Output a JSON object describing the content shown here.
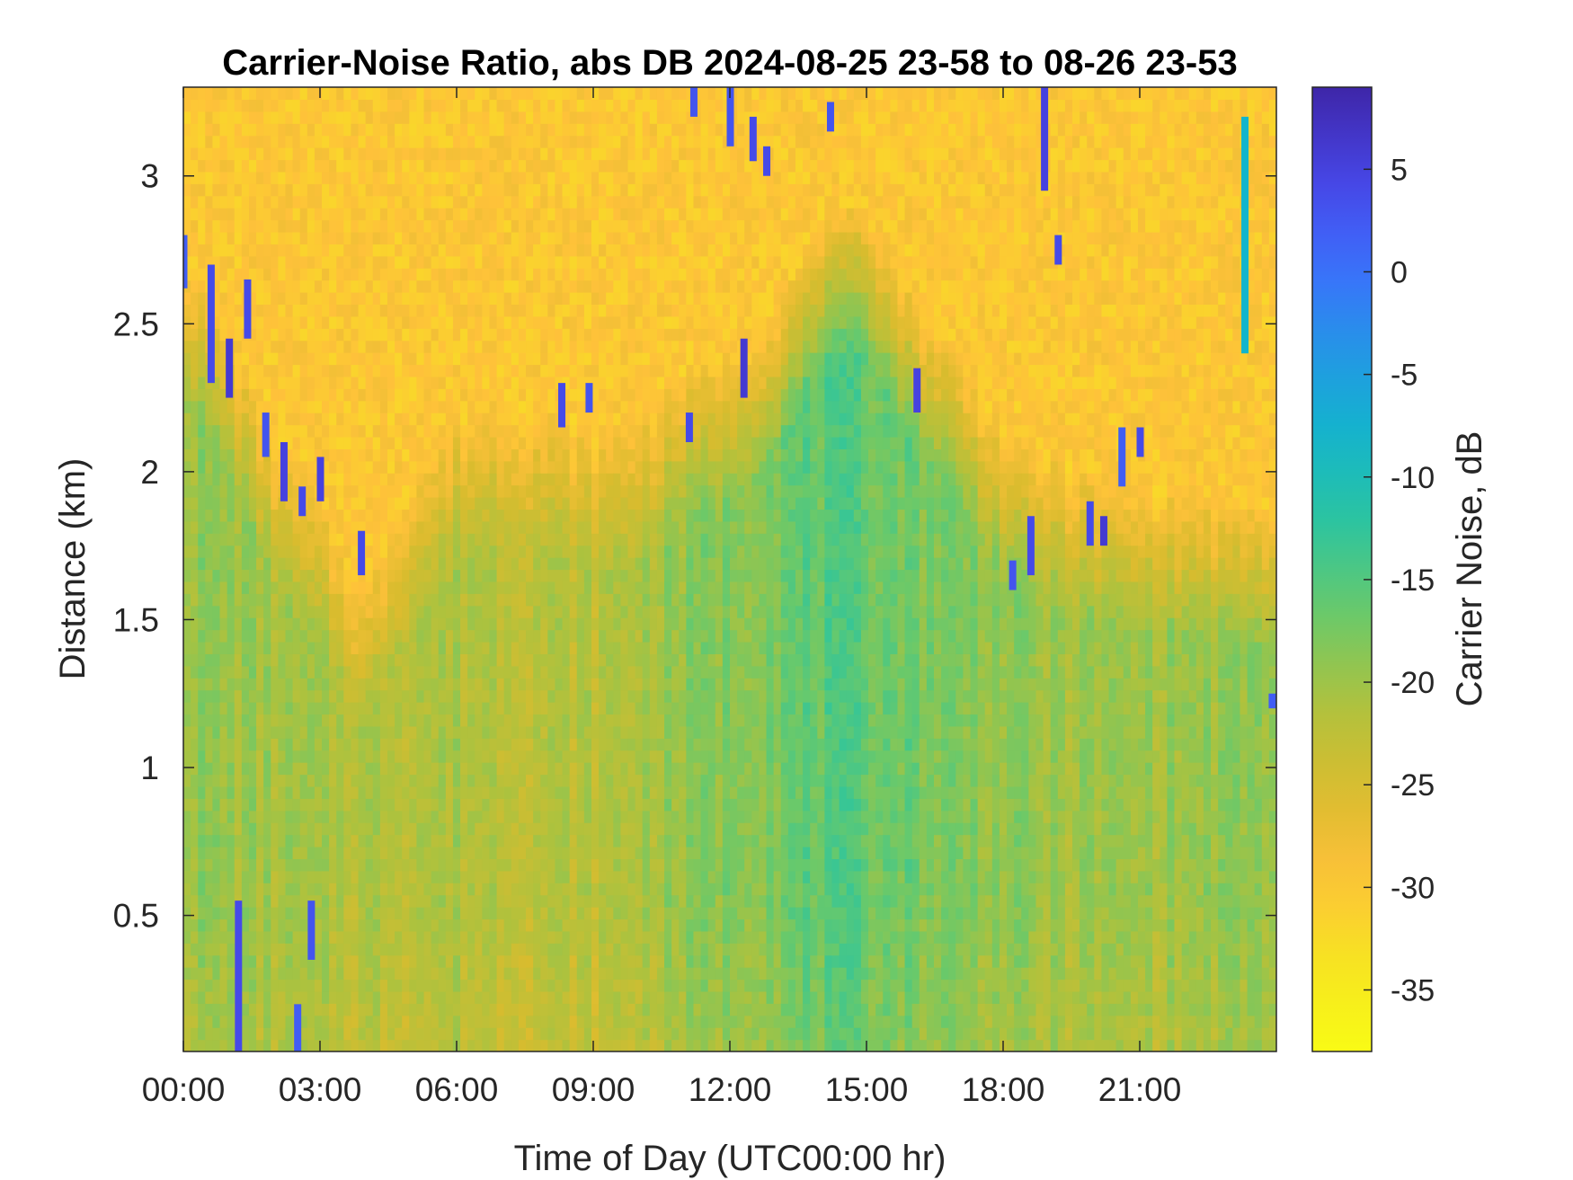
{
  "chart_data": {
    "type": "heatmap",
    "title": "Carrier-Noise Ratio, abs DB 2024-08-25 23-58 to 08-26 23-53",
    "xlabel": "Time of Day (UTC00:00 hr)",
    "ylabel": "Distance (km)",
    "colorbar_label": "Carrier Noise, dB",
    "xlim": [
      0,
      24
    ],
    "ylim": [
      0.04,
      3.3
    ],
    "clim": [
      -38,
      9
    ],
    "x_ticks": [
      {
        "value": 0,
        "label": "00:00"
      },
      {
        "value": 3,
        "label": "03:00"
      },
      {
        "value": 6,
        "label": "06:00"
      },
      {
        "value": 9,
        "label": "09:00"
      },
      {
        "value": 12,
        "label": "12:00"
      },
      {
        "value": 15,
        "label": "15:00"
      },
      {
        "value": 18,
        "label": "18:00"
      },
      {
        "value": 21,
        "label": "21:00"
      }
    ],
    "y_ticks": [
      {
        "value": 0.5,
        "label": "0.5"
      },
      {
        "value": 1,
        "label": "1"
      },
      {
        "value": 1.5,
        "label": "1.5"
      },
      {
        "value": 2,
        "label": "2"
      },
      {
        "value": 2.5,
        "label": "2.5"
      },
      {
        "value": 3,
        "label": "3"
      }
    ],
    "colorbar_ticks": [
      {
        "value": 5,
        "label": "5"
      },
      {
        "value": 0,
        "label": "0"
      },
      {
        "value": -5,
        "label": "-5"
      },
      {
        "value": -10,
        "label": "-10"
      },
      {
        "value": -15,
        "label": "-15"
      },
      {
        "value": -20,
        "label": "-20"
      },
      {
        "value": -25,
        "label": "-25"
      },
      {
        "value": -30,
        "label": "-30"
      },
      {
        "value": -35,
        "label": "-35"
      }
    ],
    "colormap": [
      "#3E26A8",
      "#4743E3",
      "#3D6CFE",
      "#2397E6",
      "#12B6CB",
      "#2DC59E",
      "#6AC96A",
      "#ADC23E",
      "#D9BC2E",
      "#FEC13A",
      "#F6E520",
      "#F9FB15"
    ],
    "colormap_reversed": true,
    "boundary_km_vs_hour": [
      [
        0,
        2.75
      ],
      [
        1,
        2.5
      ],
      [
        2,
        2.1
      ],
      [
        3,
        1.9
      ],
      [
        4,
        1.6
      ],
      [
        5,
        2.0
      ],
      [
        6,
        2.2
      ],
      [
        7,
        2.25
      ],
      [
        8,
        2.22
      ],
      [
        9,
        2.15
      ],
      [
        10,
        2.2
      ],
      [
        11,
        2.35
      ],
      [
        12,
        2.4
      ],
      [
        13,
        2.55
      ],
      [
        14,
        2.85
      ],
      [
        15,
        2.9
      ],
      [
        16,
        2.6
      ],
      [
        17,
        2.4
      ],
      [
        18,
        2.15
      ],
      [
        19,
        2.05
      ],
      [
        20,
        2.0
      ],
      [
        21,
        1.95
      ],
      [
        22,
        1.95
      ],
      [
        23,
        1.9
      ],
      [
        24,
        1.9
      ]
    ],
    "lower_region_dB_vs_hour": [
      [
        0,
        -19
      ],
      [
        3,
        -21
      ],
      [
        6,
        -21
      ],
      [
        9,
        -22
      ],
      [
        12,
        -18
      ],
      [
        14,
        -16
      ],
      [
        15,
        -16
      ],
      [
        17,
        -18
      ],
      [
        19,
        -20
      ],
      [
        21,
        -20
      ],
      [
        24,
        -19
      ]
    ],
    "upper_region_dB": -30,
    "strong_returns": [
      {
        "hour": 0.0,
        "range_km": [
          2.62,
          2.8
        ],
        "dB": 2
      },
      {
        "hour": 0.6,
        "range_km": [
          2.3,
          2.7
        ],
        "dB": 4
      },
      {
        "hour": 1.0,
        "range_km": [
          2.25,
          2.45
        ],
        "dB": 6
      },
      {
        "hour": 1.4,
        "range_km": [
          2.45,
          2.65
        ],
        "dB": 4
      },
      {
        "hour": 1.8,
        "range_km": [
          2.05,
          2.2
        ],
        "dB": 3
      },
      {
        "hour": 2.2,
        "range_km": [
          1.9,
          2.1
        ],
        "dB": 5
      },
      {
        "hour": 2.6,
        "range_km": [
          1.85,
          1.95
        ],
        "dB": 4
      },
      {
        "hour": 3.0,
        "range_km": [
          1.9,
          2.05
        ],
        "dB": 5
      },
      {
        "hour": 3.9,
        "range_km": [
          1.65,
          1.8
        ],
        "dB": 4
      },
      {
        "hour": 1.2,
        "range_km": [
          0.04,
          0.55
        ],
        "dB": 4
      },
      {
        "hour": 2.5,
        "range_km": [
          0.04,
          0.2
        ],
        "dB": 2
      },
      {
        "hour": 2.8,
        "range_km": [
          0.35,
          0.55
        ],
        "dB": 3
      },
      {
        "hour": 8.3,
        "range_km": [
          2.15,
          2.3
        ],
        "dB": 4
      },
      {
        "hour": 8.9,
        "range_km": [
          2.2,
          2.3
        ],
        "dB": 3
      },
      {
        "hour": 11.1,
        "range_km": [
          2.1,
          2.2
        ],
        "dB": 4
      },
      {
        "hour": 11.2,
        "range_km": [
          3.2,
          3.3
        ],
        "dB": 3
      },
      {
        "hour": 12.0,
        "range_km": [
          3.1,
          3.3
        ],
        "dB": 3
      },
      {
        "hour": 12.3,
        "range_km": [
          2.25,
          2.45
        ],
        "dB": 6
      },
      {
        "hour": 12.5,
        "range_km": [
          3.05,
          3.2
        ],
        "dB": 4
      },
      {
        "hour": 12.8,
        "range_km": [
          3.0,
          3.1
        ],
        "dB": 4
      },
      {
        "hour": 14.2,
        "range_km": [
          3.15,
          3.25
        ],
        "dB": 3
      },
      {
        "hour": 16.1,
        "range_km": [
          2.2,
          2.35
        ],
        "dB": 5
      },
      {
        "hour": 18.2,
        "range_km": [
          1.6,
          1.7
        ],
        "dB": 3
      },
      {
        "hour": 18.6,
        "range_km": [
          1.65,
          1.85
        ],
        "dB": 4
      },
      {
        "hour": 18.9,
        "range_km": [
          2.95,
          3.3
        ],
        "dB": 5
      },
      {
        "hour": 19.2,
        "range_km": [
          2.7,
          2.8
        ],
        "dB": 4
      },
      {
        "hour": 19.9,
        "range_km": [
          1.75,
          1.9
        ],
        "dB": 4
      },
      {
        "hour": 20.2,
        "range_km": [
          1.75,
          1.85
        ],
        "dB": 6
      },
      {
        "hour": 20.6,
        "range_km": [
          1.95,
          2.15
        ],
        "dB": 2
      },
      {
        "hour": 21.0,
        "range_km": [
          2.05,
          2.15
        ],
        "dB": 4
      },
      {
        "hour": 23.3,
        "range_km": [
          2.4,
          3.2
        ],
        "dB": -8
      },
      {
        "hour": 23.9,
        "range_km": [
          1.2,
          1.25
        ],
        "dB": 2
      }
    ]
  }
}
